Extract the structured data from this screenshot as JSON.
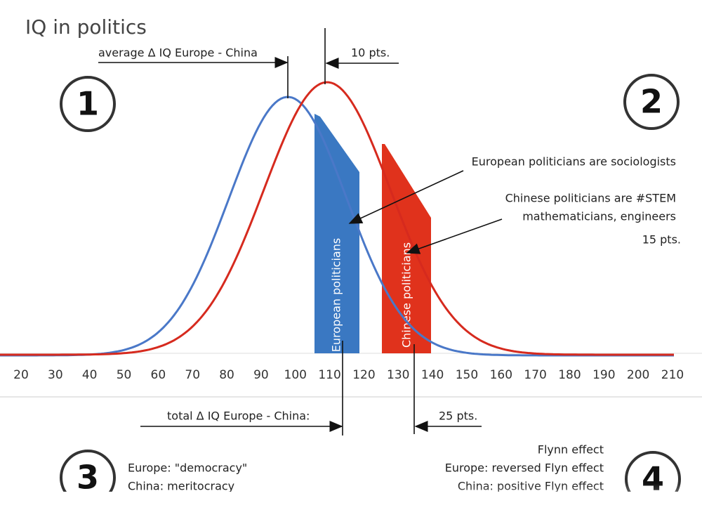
{
  "title": "IQ in politics",
  "markers": [
    "1",
    "2",
    "3",
    "4"
  ],
  "top_annotations": {
    "average_delta": "average Δ IQ Europe - China",
    "average_pts": "10 pts."
  },
  "bars": {
    "european": "European politicians",
    "chinese": "Chinese politicians"
  },
  "right_annotations": {
    "european": "European politicians are sociologists",
    "chinese_1": "Chinese politicians are  #STEM",
    "chinese_2": "mathematicians, engineers",
    "chinese_pts": "15 pts."
  },
  "axis_ticks": [
    20,
    30,
    40,
    50,
    60,
    70,
    80,
    90,
    100,
    110,
    120,
    130,
    140,
    150,
    160,
    170,
    180,
    190,
    200,
    210
  ],
  "bottom_annotations": {
    "total_delta": "total Δ IQ Europe - China:",
    "total_pts": "25 pts.",
    "europe": "Europe: \"democracy\"",
    "china": "China:  meritocracy",
    "flynn": "Flynn effect",
    "flynn_europe": "Europe: reversed Flyn effect",
    "flynn_china": "China: positive Flyn effect"
  }
}
